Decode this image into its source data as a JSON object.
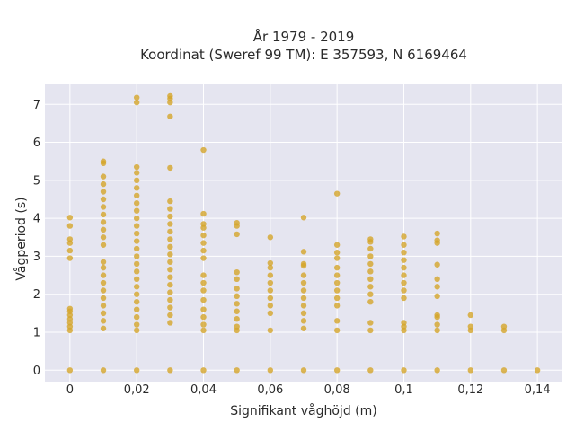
{
  "chart_data": {
    "type": "scatter",
    "title": "År 1979 - 2019",
    "subtitle": "Koordinat (Sweref 99 TM): E 357593, N 6169464",
    "xlabel": "Signifikant våghöjd (m)",
    "ylabel": "Vågperiod (s)",
    "xlim": [
      -0.0075,
      0.1475
    ],
    "ylim": [
      -0.3,
      7.55
    ],
    "x_ticks": [
      0,
      0.02,
      0.04,
      0.06,
      0.08,
      0.1,
      0.12,
      0.14
    ],
    "x_tick_labels": [
      "0",
      "0,02",
      "0,04",
      "0,06",
      "0,08",
      "0,1",
      "0,12",
      "0,14"
    ],
    "y_ticks": [
      0,
      1,
      2,
      3,
      4,
      5,
      6,
      7
    ],
    "y_tick_labels": [
      "0",
      "1",
      "2",
      "3",
      "4",
      "5",
      "6",
      "7"
    ],
    "grid": true,
    "plot_bgcolor": "#e5e5f0",
    "marker_color": "#d4a52a",
    "series": [
      {
        "points": [
          [
            0,
            0
          ],
          [
            0,
            1.05
          ],
          [
            0,
            1.15
          ],
          [
            0,
            1.25
          ],
          [
            0,
            1.35
          ],
          [
            0,
            1.45
          ],
          [
            0,
            1.55
          ],
          [
            0,
            1.62
          ],
          [
            0,
            2.95
          ],
          [
            0,
            3.15
          ],
          [
            0,
            3.35
          ],
          [
            0,
            3.45
          ],
          [
            0,
            3.8
          ],
          [
            0,
            4.02
          ],
          [
            0.01,
            0
          ],
          [
            0.01,
            1.1
          ],
          [
            0.01,
            1.3
          ],
          [
            0.01,
            1.5
          ],
          [
            0.01,
            1.7
          ],
          [
            0.01,
            1.9
          ],
          [
            0.01,
            2.1
          ],
          [
            0.01,
            2.3
          ],
          [
            0.01,
            2.5
          ],
          [
            0.01,
            2.7
          ],
          [
            0.01,
            2.85
          ],
          [
            0.01,
            3.3
          ],
          [
            0.01,
            3.5
          ],
          [
            0.01,
            3.7
          ],
          [
            0.01,
            3.9
          ],
          [
            0.01,
            4.1
          ],
          [
            0.01,
            4.3
          ],
          [
            0.01,
            4.5
          ],
          [
            0.01,
            4.7
          ],
          [
            0.01,
            4.9
          ],
          [
            0.01,
            5.1
          ],
          [
            0.01,
            5.45
          ],
          [
            0.01,
            5.5
          ],
          [
            0.02,
            0
          ],
          [
            0.02,
            1.05
          ],
          [
            0.02,
            1.2
          ],
          [
            0.02,
            1.4
          ],
          [
            0.02,
            1.6
          ],
          [
            0.02,
            1.8
          ],
          [
            0.02,
            2.0
          ],
          [
            0.02,
            2.2
          ],
          [
            0.02,
            2.4
          ],
          [
            0.02,
            2.6
          ],
          [
            0.02,
            2.8
          ],
          [
            0.02,
            3.0
          ],
          [
            0.02,
            3.2
          ],
          [
            0.02,
            3.4
          ],
          [
            0.02,
            3.6
          ],
          [
            0.02,
            3.8
          ],
          [
            0.02,
            4.0
          ],
          [
            0.02,
            4.2
          ],
          [
            0.02,
            4.4
          ],
          [
            0.02,
            4.6
          ],
          [
            0.02,
            4.8
          ],
          [
            0.02,
            5.0
          ],
          [
            0.02,
            5.2
          ],
          [
            0.02,
            5.35
          ],
          [
            0.02,
            7.05
          ],
          [
            0.02,
            7.18
          ],
          [
            0.03,
            0
          ],
          [
            0.03,
            1.25
          ],
          [
            0.03,
            1.45
          ],
          [
            0.03,
            1.65
          ],
          [
            0.03,
            1.85
          ],
          [
            0.03,
            2.05
          ],
          [
            0.03,
            2.25
          ],
          [
            0.03,
            2.45
          ],
          [
            0.03,
            2.65
          ],
          [
            0.03,
            2.85
          ],
          [
            0.03,
            3.05
          ],
          [
            0.03,
            3.25
          ],
          [
            0.03,
            3.45
          ],
          [
            0.03,
            3.65
          ],
          [
            0.03,
            3.85
          ],
          [
            0.03,
            4.05
          ],
          [
            0.03,
            4.25
          ],
          [
            0.03,
            4.45
          ],
          [
            0.03,
            5.33
          ],
          [
            0.03,
            6.68
          ],
          [
            0.03,
            7.05
          ],
          [
            0.03,
            7.15
          ],
          [
            0.03,
            7.22
          ],
          [
            0.04,
            0
          ],
          [
            0.04,
            1.05
          ],
          [
            0.04,
            1.2
          ],
          [
            0.04,
            1.4
          ],
          [
            0.04,
            1.6
          ],
          [
            0.04,
            1.85
          ],
          [
            0.04,
            2.1
          ],
          [
            0.04,
            2.3
          ],
          [
            0.04,
            2.5
          ],
          [
            0.04,
            2.95
          ],
          [
            0.04,
            3.15
          ],
          [
            0.04,
            3.35
          ],
          [
            0.04,
            3.55
          ],
          [
            0.04,
            3.75
          ],
          [
            0.04,
            3.85
          ],
          [
            0.04,
            4.12
          ],
          [
            0.04,
            5.8
          ],
          [
            0.05,
            0
          ],
          [
            0.05,
            1.05
          ],
          [
            0.05,
            1.15
          ],
          [
            0.05,
            1.35
          ],
          [
            0.05,
            1.55
          ],
          [
            0.05,
            1.75
          ],
          [
            0.05,
            1.95
          ],
          [
            0.05,
            2.15
          ],
          [
            0.05,
            2.4
          ],
          [
            0.05,
            2.58
          ],
          [
            0.05,
            3.58
          ],
          [
            0.05,
            3.8
          ],
          [
            0.05,
            3.88
          ],
          [
            0.06,
            0
          ],
          [
            0.06,
            1.05
          ],
          [
            0.06,
            1.5
          ],
          [
            0.06,
            1.7
          ],
          [
            0.06,
            1.9
          ],
          [
            0.06,
            2.1
          ],
          [
            0.06,
            2.3
          ],
          [
            0.06,
            2.5
          ],
          [
            0.06,
            2.7
          ],
          [
            0.06,
            2.82
          ],
          [
            0.06,
            3.5
          ],
          [
            0.07,
            0
          ],
          [
            0.07,
            1.1
          ],
          [
            0.07,
            1.3
          ],
          [
            0.07,
            1.5
          ],
          [
            0.07,
            1.7
          ],
          [
            0.07,
            1.9
          ],
          [
            0.07,
            2.1
          ],
          [
            0.07,
            2.3
          ],
          [
            0.07,
            2.5
          ],
          [
            0.07,
            2.75
          ],
          [
            0.07,
            2.8
          ],
          [
            0.07,
            3.12
          ],
          [
            0.07,
            4.02
          ],
          [
            0.08,
            0
          ],
          [
            0.08,
            1.05
          ],
          [
            0.08,
            1.3
          ],
          [
            0.08,
            1.7
          ],
          [
            0.08,
            1.9
          ],
          [
            0.08,
            2.1
          ],
          [
            0.08,
            2.3
          ],
          [
            0.08,
            2.5
          ],
          [
            0.08,
            2.7
          ],
          [
            0.08,
            2.95
          ],
          [
            0.08,
            3.1
          ],
          [
            0.08,
            3.3
          ],
          [
            0.08,
            4.65
          ],
          [
            0.09,
            0
          ],
          [
            0.09,
            1.05
          ],
          [
            0.09,
            1.25
          ],
          [
            0.09,
            1.8
          ],
          [
            0.09,
            2.0
          ],
          [
            0.09,
            2.2
          ],
          [
            0.09,
            2.4
          ],
          [
            0.09,
            2.6
          ],
          [
            0.09,
            2.8
          ],
          [
            0.09,
            3.0
          ],
          [
            0.09,
            3.2
          ],
          [
            0.09,
            3.38
          ],
          [
            0.09,
            3.45
          ],
          [
            0.1,
            0
          ],
          [
            0.1,
            1.05
          ],
          [
            0.1,
            1.15
          ],
          [
            0.1,
            1.25
          ],
          [
            0.1,
            1.9
          ],
          [
            0.1,
            2.1
          ],
          [
            0.1,
            2.3
          ],
          [
            0.1,
            2.5
          ],
          [
            0.1,
            2.7
          ],
          [
            0.1,
            2.9
          ],
          [
            0.1,
            3.1
          ],
          [
            0.1,
            3.3
          ],
          [
            0.1,
            3.52
          ],
          [
            0.11,
            0
          ],
          [
            0.11,
            1.05
          ],
          [
            0.11,
            1.2
          ],
          [
            0.11,
            1.4
          ],
          [
            0.11,
            1.45
          ],
          [
            0.11,
            1.95
          ],
          [
            0.11,
            2.2
          ],
          [
            0.11,
            2.4
          ],
          [
            0.11,
            2.78
          ],
          [
            0.11,
            3.35
          ],
          [
            0.11,
            3.42
          ],
          [
            0.11,
            3.6
          ],
          [
            0.12,
            0
          ],
          [
            0.12,
            1.05
          ],
          [
            0.12,
            1.15
          ],
          [
            0.12,
            1.45
          ],
          [
            0.13,
            0
          ],
          [
            0.13,
            1.05
          ],
          [
            0.13,
            1.15
          ],
          [
            0.14,
            0
          ]
        ]
      }
    ]
  }
}
